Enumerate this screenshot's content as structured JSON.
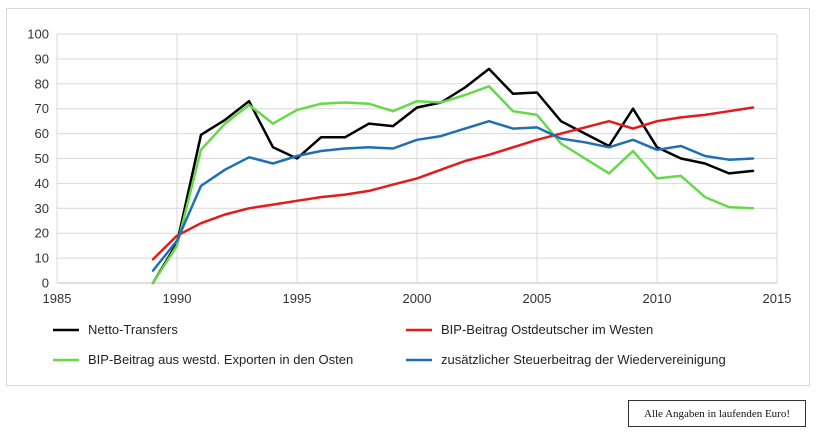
{
  "chart_data": {
    "type": "line",
    "title": "",
    "xlabel": "",
    "ylabel": "",
    "xlim": [
      1985,
      2015
    ],
    "ylim": [
      0,
      100
    ],
    "x_ticks": [
      "1985",
      "1990",
      "1995",
      "2000",
      "2005",
      "2010",
      "2015"
    ],
    "y_ticks": [
      "0",
      "10",
      "20",
      "30",
      "40",
      "50",
      "60",
      "70",
      "80",
      "90",
      "100"
    ],
    "grid": "vertical and horizontal",
    "legend_position": "bottom",
    "series": [
      {
        "name": "Netto-Transfers",
        "color": "#000000",
        "x": [
          1989,
          1990,
          1991,
          1992,
          1993,
          1994,
          1995,
          1996,
          1997,
          1998,
          1999,
          2000,
          2001,
          2002,
          2003,
          2004,
          2005,
          2006,
          2007,
          2008,
          2009,
          2010,
          2011,
          2012,
          2013,
          2014
        ],
        "values": [
          0,
          16,
          59.5,
          65.5,
          73,
          54.5,
          50,
          58.5,
          58.5,
          64,
          63,
          70.5,
          72.5,
          78.5,
          86,
          76,
          76.5,
          65,
          60,
          55,
          70,
          54.5,
          50,
          48,
          44,
          45
        ]
      },
      {
        "name": "BIP-Beitrag Ostdeutscher im Westen",
        "color": "#e41a1c",
        "x": [
          1989,
          1990,
          1991,
          1992,
          1993,
          1994,
          1995,
          1996,
          1997,
          1998,
          1999,
          2000,
          2001,
          2002,
          2003,
          2004,
          2005,
          2006,
          2007,
          2008,
          2009,
          2010,
          2011,
          2012,
          2013,
          2014
        ],
        "values": [
          9.5,
          19,
          24,
          27.5,
          30,
          31.5,
          33,
          34.5,
          35.5,
          37,
          39.5,
          42,
          45.5,
          49,
          51.5,
          54.5,
          57.5,
          60,
          62.5,
          65,
          62,
          65,
          66.5,
          67.5,
          69,
          70.5
        ]
      },
      {
        "name": "BIP-Beitrag aus westd. Exporten in den Osten",
        "color": "#66d94a",
        "x": [
          1989,
          1990,
          1991,
          1992,
          1993,
          1994,
          1995,
          1996,
          1997,
          1998,
          1999,
          2000,
          2001,
          2002,
          2003,
          2004,
          2005,
          2006,
          2007,
          2008,
          2009,
          2010,
          2011,
          2012,
          2013,
          2014
        ],
        "values": [
          0,
          15,
          53.5,
          64,
          71.5,
          64,
          69.5,
          72,
          72.5,
          72,
          69,
          73,
          72.5,
          75.5,
          79,
          69,
          67.5,
          56,
          50,
          44,
          53,
          42,
          43,
          34.5,
          30.5,
          30
        ]
      },
      {
        "name": "zusätzlicher Steuerbeitrag der Wiedervereinigung",
        "color": "#1f6fb5",
        "x": [
          1989,
          1990,
          1991,
          1992,
          1993,
          1994,
          1995,
          1996,
          1997,
          1998,
          1999,
          2000,
          2001,
          2002,
          2003,
          2004,
          2005,
          2006,
          2007,
          2008,
          2009,
          2010,
          2011,
          2012,
          2013,
          2014
        ],
        "values": [
          5,
          17,
          39,
          45.5,
          50.5,
          48,
          51,
          53,
          54,
          54.5,
          54,
          57.5,
          59,
          62,
          65,
          62,
          62.5,
          58,
          56.5,
          54.5,
          57.5,
          53.5,
          55,
          51,
          49.5,
          50
        ]
      }
    ]
  },
  "note": "Alle Angaben in laufenden Euro!"
}
